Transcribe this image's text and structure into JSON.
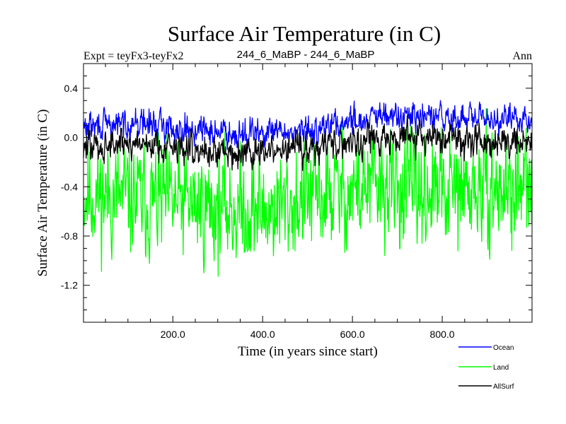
{
  "chart_data": {
    "type": "line",
    "title": "Surface Air Temperature (in C)",
    "subtitle_left": "Expt = teyFx3-teyFx2",
    "subtitle_center": "244_6_MaBP - 244_6_MaBP",
    "subtitle_right": "Ann",
    "xlabel": "Time (in years since start)",
    "ylabel": "Surface Air Temperature (in C)",
    "xlim": [
      1,
      1000
    ],
    "ylim": [
      -1.5,
      0.6
    ],
    "xticks": [
      {
        "value": 200,
        "label": "200.0"
      },
      {
        "value": 400,
        "label": "400.0"
      },
      {
        "value": 600,
        "label": "600.0"
      },
      {
        "value": 800,
        "label": "800.0"
      }
    ],
    "yticks": [
      {
        "value": 0.4,
        "label": "0.4"
      },
      {
        "value": 0.0,
        "label": "0.0"
      },
      {
        "value": -0.4,
        "label": "-0.4"
      },
      {
        "value": -0.8,
        "label": "-0.8"
      },
      {
        "value": -1.2,
        "label": "-1.2"
      }
    ],
    "series": [
      {
        "name": "Land",
        "color": "#00ff00",
        "baseline": [
          [
            0,
            -0.45
          ],
          [
            100,
            -0.5
          ],
          [
            250,
            -0.55
          ],
          [
            400,
            -0.6
          ],
          [
            500,
            -0.5
          ],
          [
            650,
            -0.4
          ],
          [
            800,
            -0.45
          ],
          [
            1000,
            -0.42
          ]
        ],
        "noise": 0.21,
        "seed": 11
      },
      {
        "name": "Ocean",
        "color": "#0000ff",
        "baseline": [
          [
            0,
            0.08
          ],
          [
            120,
            0.12
          ],
          [
            250,
            0.06
          ],
          [
            400,
            0.03
          ],
          [
            500,
            0.05
          ],
          [
            600,
            0.14
          ],
          [
            700,
            0.17
          ],
          [
            850,
            0.15
          ],
          [
            1000,
            0.15
          ]
        ],
        "noise": 0.055,
        "seed": 29
      },
      {
        "name": "AllSurf",
        "color": "#000000",
        "baseline": [
          [
            0,
            -0.08
          ],
          [
            120,
            -0.04
          ],
          [
            250,
            -0.1
          ],
          [
            400,
            -0.13
          ],
          [
            500,
            -0.08
          ],
          [
            600,
            -0.02
          ],
          [
            700,
            0.0
          ],
          [
            850,
            -0.01
          ],
          [
            1000,
            -0.03
          ]
        ],
        "noise": 0.06,
        "seed": 47
      }
    ],
    "legend": {
      "position": "bottom-right",
      "entries": [
        {
          "name": "Ocean",
          "color": "#0000ff"
        },
        {
          "name": "Land",
          "color": "#00ff00"
        },
        {
          "name": "AllSurf",
          "color": "#000000"
        }
      ]
    }
  }
}
